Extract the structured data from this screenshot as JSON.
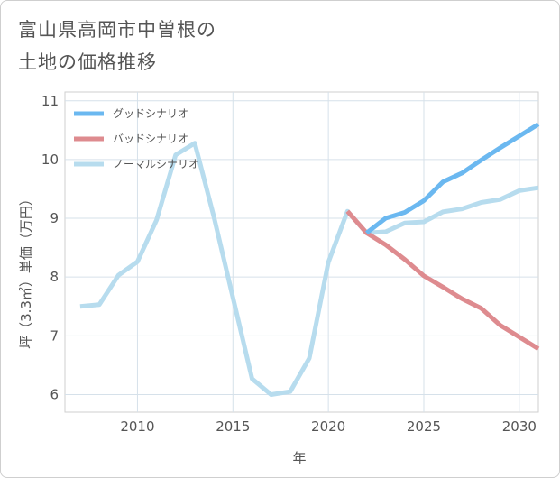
{
  "title_lines": [
    "富山県高岡市中曽根の",
    "土地の価格推移"
  ],
  "chart_data": {
    "type": "line",
    "xlabel": "年",
    "ylabel": "坪（3.3㎡）単価（万円）",
    "xlim": [
      2006.2,
      2031
    ],
    "ylim": [
      5.7,
      11.15
    ],
    "x_ticks": [
      2010,
      2015,
      2020,
      2025,
      2030
    ],
    "y_ticks": [
      6,
      7,
      8,
      9,
      10,
      11
    ],
    "grid": true,
    "legend_position": "top-left",
    "series": [
      {
        "name": "グッドシナリオ",
        "color": "#6bb8f0",
        "x": [
          2022,
          2023,
          2024,
          2025,
          2026,
          2027,
          2028,
          2029,
          2030,
          2031
        ],
        "y": [
          8.75,
          9.0,
          9.1,
          9.3,
          9.62,
          9.77,
          9.99,
          10.2,
          10.4,
          10.6
        ]
      },
      {
        "name": "バッドシナリオ",
        "color": "#de8b8f",
        "x": [
          2021,
          2022,
          2023,
          2024,
          2025,
          2026,
          2027,
          2028,
          2029,
          2030,
          2031
        ],
        "y": [
          9.12,
          8.75,
          8.55,
          8.3,
          8.02,
          7.83,
          7.63,
          7.47,
          7.18,
          6.98,
          6.78
        ]
      },
      {
        "name": "ノーマルシナリオ",
        "color": "#b7dcee",
        "x": [
          2007,
          2008,
          2009,
          2010,
          2011,
          2012,
          2013,
          2014,
          2015,
          2016,
          2017,
          2018,
          2019,
          2020,
          2021,
          2022,
          2023,
          2024,
          2025,
          2026,
          2027,
          2028,
          2029,
          2030,
          2031
        ],
        "y": [
          7.5,
          7.53,
          8.03,
          8.26,
          8.97,
          10.08,
          10.28,
          9.03,
          7.65,
          6.27,
          6.0,
          6.05,
          6.62,
          8.25,
          9.12,
          8.75,
          8.77,
          8.92,
          8.94,
          9.11,
          9.16,
          9.27,
          9.32,
          9.47,
          9.52
        ]
      }
    ]
  }
}
